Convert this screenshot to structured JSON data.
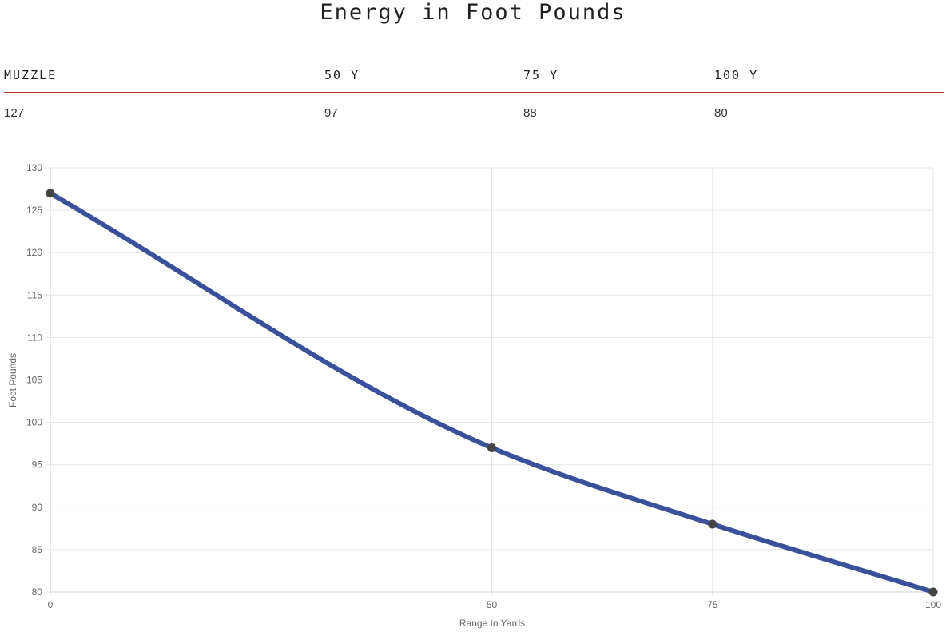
{
  "page": {
    "title": "Energy in Foot Pounds"
  },
  "table": {
    "headers": [
      "MUZZLE",
      "50 Y",
      "75 Y",
      "100 Y"
    ],
    "values": [
      "127",
      "97",
      "88",
      "80"
    ]
  },
  "colors": {
    "accent": "#b5342a",
    "line": "#3a509a",
    "point": "#444444",
    "grid": "#e6e6e6"
  },
  "chart_data": {
    "type": "line",
    "title": "",
    "xlabel": "Range In Yards",
    "ylabel": "Foot Pounds",
    "x": [
      0,
      50,
      75,
      100
    ],
    "series": [
      {
        "values": [
          127,
          97,
          88,
          80
        ]
      }
    ],
    "xlim": [
      0,
      100
    ],
    "ylim": [
      80,
      130
    ],
    "xticks": [
      0,
      50,
      75,
      100
    ],
    "yticks": [
      80,
      85,
      90,
      95,
      100,
      105,
      110,
      115,
      120,
      125,
      130
    ],
    "grid": true,
    "legend": "none"
  }
}
